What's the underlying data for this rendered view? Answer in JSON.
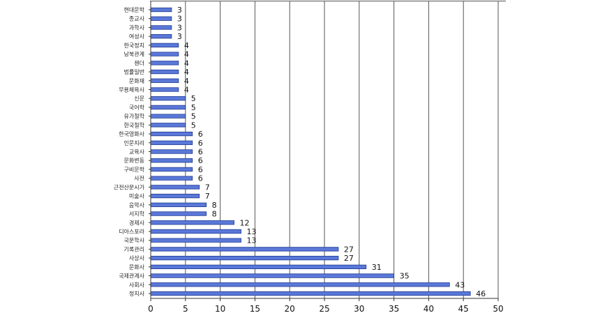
{
  "chart_data": {
    "type": "bar",
    "orientation": "horizontal",
    "categories": [
      "현대문학",
      "종교사",
      "과학사",
      "여성사",
      "한국정치",
      "남북관계",
      "젠더",
      "법률일반",
      "문화재",
      "무용체육사",
      "신문",
      "국어학",
      "유가철학",
      "한국철학",
      "한국영화사",
      "인문지리",
      "교육사",
      "문화변동",
      "구비문학",
      "사전",
      "근전산문시가",
      "미술사",
      "음악사",
      "서지학",
      "경제사",
      "디아스포라",
      "국문학사",
      "기록관리",
      "사상사",
      "문화사",
      "국제관계사",
      "사회사",
      "정치사"
    ],
    "values": [
      3,
      3,
      3,
      3,
      4,
      4,
      4,
      4,
      4,
      4,
      5,
      5,
      5,
      5,
      6,
      6,
      6,
      6,
      6,
      6,
      7,
      7,
      8,
      8,
      12,
      13,
      13,
      27,
      27,
      31,
      35,
      43,
      46
    ],
    "xlim": [
      0,
      50
    ],
    "xticks": [
      0,
      5,
      10,
      15,
      20,
      25,
      30,
      35,
      40,
      45,
      50
    ],
    "grid": "vertical",
    "title": "",
    "xlabel": "",
    "ylabel": "",
    "bar_color": "#5a78d8",
    "bar_edge_color": "#1f3a93"
  }
}
